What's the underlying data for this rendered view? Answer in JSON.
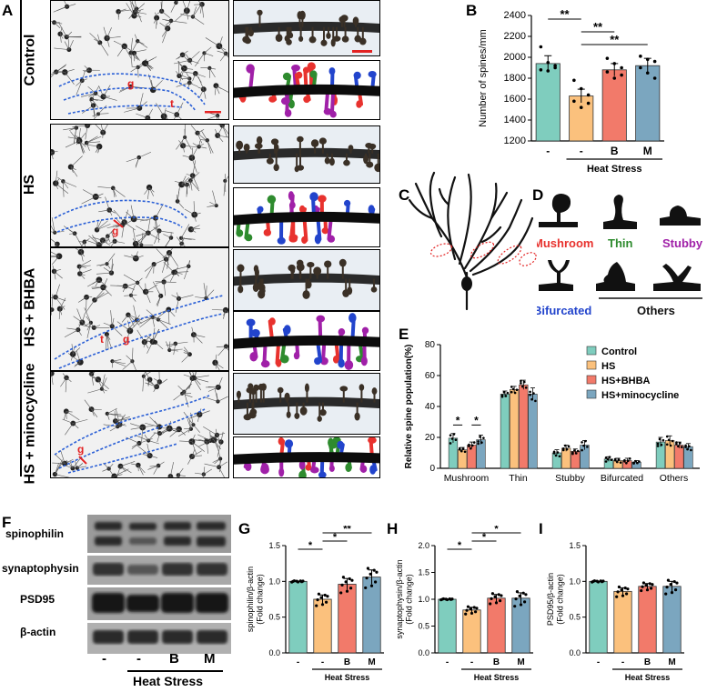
{
  "panel_letters": {
    "A": "A",
    "B": "B",
    "C": "C",
    "D": "D",
    "E": "E",
    "F": "F",
    "G": "G",
    "H": "H",
    "I": "I"
  },
  "panelA": {
    "rows": [
      "Control",
      "HS",
      "HS + BHBA",
      "HS + minocycline"
    ],
    "annotations": {
      "g": "g",
      "t": "t"
    }
  },
  "panelD": {
    "shapes": [
      "Mushroom",
      "Thin",
      "Stubby",
      "Bifurcated",
      "Others"
    ],
    "colors": {
      "Mushroom": "#e8322e",
      "Thin": "#2e8b2e",
      "Stubby": "#a020a8",
      "Bifurcated": "#2244cc",
      "Others": "#111111"
    }
  },
  "panelF": {
    "proteins": [
      "spinophilin",
      "synaptophysin",
      "PSD95",
      "β-actin"
    ],
    "lanes": [
      "-",
      "-",
      "B",
      "M"
    ],
    "group_label": "Heat Stress"
  },
  "colors": {
    "control": "#7fcdbe",
    "hs": "#fbc17d",
    "bhba": "#f27a6a",
    "mino": "#7ba6bf"
  },
  "chart_data": [
    {
      "id": "B",
      "type": "bar",
      "categories": [
        "-",
        "-",
        "B",
        "M"
      ],
      "group_label": "Heat Stress",
      "ylabel": "Number of spines/mm",
      "ylim": [
        1200,
        2400
      ],
      "yticks": [
        1200,
        1400,
        1600,
        1800,
        2000,
        2200,
        2400
      ],
      "values": [
        1940,
        1630,
        1880,
        1920
      ],
      "errors": [
        75,
        65,
        60,
        70
      ],
      "points": [
        [
          2100,
          1950,
          1900,
          1880,
          1870,
          1920
        ],
        [
          1780,
          1700,
          1640,
          1580,
          1520,
          1560
        ],
        [
          1990,
          1940,
          1900,
          1860,
          1800,
          1830
        ],
        [
          2010,
          1980,
          1960,
          1900,
          1850,
          1800
        ]
      ],
      "significance": [
        {
          "from": 0,
          "to": 1,
          "label": "**"
        },
        {
          "from": 1,
          "to": 2,
          "label": "**"
        },
        {
          "from": 1,
          "to": 3,
          "label": "**"
        }
      ]
    },
    {
      "id": "E",
      "type": "bar",
      "categories": [
        "Mushroom",
        "Thin",
        "Stubby",
        "Bifurcated",
        "Others"
      ],
      "ylabel": "Relative spine population(%)",
      "ylim": [
        0,
        80
      ],
      "yticks": [
        0,
        20,
        40,
        60,
        80
      ],
      "series": [
        {
          "name": "Control",
          "values": [
            19.5,
            48,
            10,
            6,
            17
          ],
          "errors": [
            3,
            2,
            2,
            1.5,
            3
          ]
        },
        {
          "name": "HS",
          "values": [
            12,
            51,
            13,
            5,
            18
          ],
          "errors": [
            1.5,
            2,
            2,
            1.5,
            3
          ]
        },
        {
          "name": "HS+BHBA",
          "values": [
            15,
            54,
            11,
            5,
            15
          ],
          "errors": [
            2,
            3,
            1.5,
            1.5,
            2
          ]
        },
        {
          "name": "HS+minocycline",
          "values": [
            18.5,
            48,
            15,
            4,
            14
          ],
          "errors": [
            3,
            4,
            3,
            1,
            2
          ]
        }
      ],
      "significance": [
        {
          "category": 0,
          "from": 0,
          "to": 1,
          "label": "*"
        },
        {
          "category": 0,
          "from": 2,
          "to": 3,
          "label": "*"
        }
      ]
    },
    {
      "id": "G",
      "type": "bar",
      "categories": [
        "-",
        "-",
        "B",
        "M"
      ],
      "group_label": "Heat Stress",
      "ylabel": "spinophilin/β-actin\n(Fold change)",
      "ylim": [
        0,
        1.5
      ],
      "yticks": [
        0.0,
        0.5,
        1.0,
        1.5
      ],
      "values": [
        1.0,
        0.75,
        0.96,
        1.06
      ],
      "errors": [
        0,
        0.06,
        0.08,
        0.1
      ],
      "significance": [
        {
          "from": 0,
          "to": 1,
          "label": "*"
        },
        {
          "from": 1,
          "to": 2,
          "label": "*"
        },
        {
          "from": 1,
          "to": 3,
          "label": "**"
        }
      ]
    },
    {
      "id": "H",
      "type": "bar",
      "categories": [
        "-",
        "-",
        "B",
        "M"
      ],
      "group_label": "Heat Stress",
      "ylabel": "synaptophysin/β-actin\n(Fold change)",
      "ylim": [
        0,
        2.0
      ],
      "yticks": [
        0.0,
        0.5,
        1.0,
        1.5,
        2.0
      ],
      "values": [
        1.0,
        0.8,
        1.02,
        1.02
      ],
      "errors": [
        0,
        0.05,
        0.07,
        0.1
      ],
      "significance": [
        {
          "from": 0,
          "to": 1,
          "label": "*"
        },
        {
          "from": 1,
          "to": 2,
          "label": "*"
        },
        {
          "from": 1,
          "to": 3,
          "label": "*"
        }
      ]
    },
    {
      "id": "I",
      "type": "bar",
      "categories": [
        "-",
        "-",
        "B",
        "M"
      ],
      "group_label": "Heat Stress",
      "ylabel": "PSD95/β-actin\n(Fold change)",
      "ylim": [
        0,
        1.5
      ],
      "yticks": [
        0.0,
        0.5,
        1.0,
        1.5
      ],
      "values": [
        1.0,
        0.86,
        0.93,
        0.93
      ],
      "errors": [
        0,
        0.05,
        0.04,
        0.07
      ],
      "significance": []
    }
  ]
}
